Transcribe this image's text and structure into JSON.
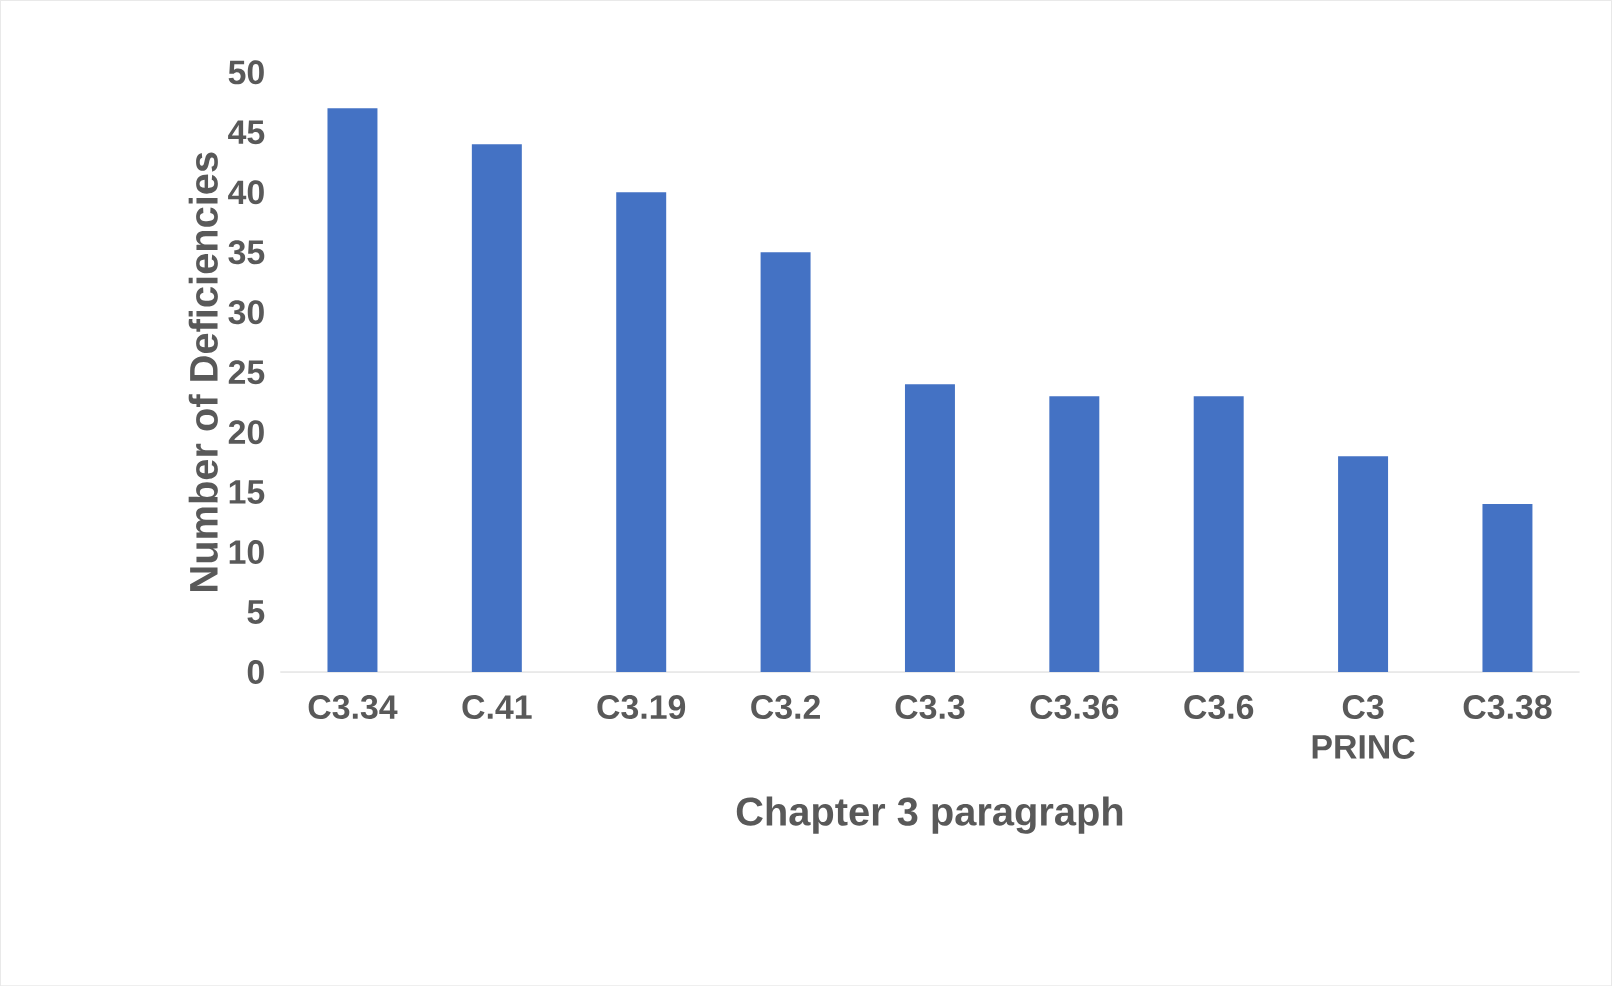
{
  "chart_data": {
    "type": "bar",
    "categories": [
      "C3.34",
      "C.41",
      "C3.19",
      "C3.2",
      "C3.3",
      "C3.36",
      "C3.6",
      "C3 PRINC",
      "C3.38"
    ],
    "values": [
      47,
      44,
      40,
      35,
      24,
      23,
      23,
      18,
      14
    ],
    "color": "#4472c4",
    "xlabel": "Chapter 3 paragraph",
    "ylabel": "Number of Deficiencies",
    "ylim": [
      0,
      50
    ],
    "yticks": [
      0,
      5,
      10,
      15,
      20,
      25,
      30,
      35,
      40,
      45,
      50
    ]
  }
}
